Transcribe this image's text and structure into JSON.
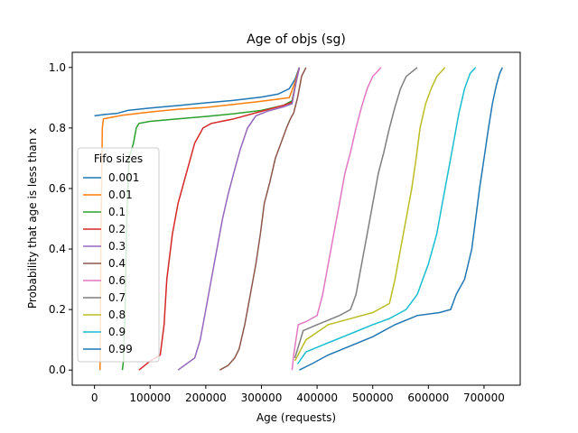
{
  "chart_data": {
    "type": "line",
    "title": "Age of objs (sg)",
    "xlabel": "Age (requests)",
    "ylabel": "Probability that age is less than x",
    "xlim": [
      -40000,
      765000
    ],
    "ylim": [
      -0.05,
      1.05
    ],
    "xticks": [
      0,
      100000,
      200000,
      300000,
      400000,
      500000,
      600000,
      700000
    ],
    "xtick_labels": [
      "0",
      "100000",
      "200000",
      "300000",
      "400000",
      "500000",
      "600000",
      "700000"
    ],
    "yticks": [
      0.0,
      0.2,
      0.4,
      0.6,
      0.8,
      1.0
    ],
    "ytick_labels": [
      "0.0",
      "0.2",
      "0.4",
      "0.6",
      "0.8",
      "1.0"
    ],
    "grid": false,
    "legend": {
      "title": "Fifo sizes",
      "placement": "lower-left"
    },
    "series": [
      {
        "name": "0.001",
        "color": "#1f77b4",
        "points": [
          [
            0,
            0.84
          ],
          [
            20000,
            0.845
          ],
          [
            40000,
            0.848
          ],
          [
            60000,
            0.858
          ],
          [
            100000,
            0.866
          ],
          [
            150000,
            0.874
          ],
          [
            200000,
            0.883
          ],
          [
            250000,
            0.891
          ],
          [
            300000,
            0.902
          ],
          [
            330000,
            0.912
          ],
          [
            350000,
            0.93
          ],
          [
            360000,
            0.96
          ],
          [
            368000,
            1.0
          ]
        ]
      },
      {
        "name": "0.01",
        "color": "#ff7f0e",
        "points": [
          [
            10000,
            0.0
          ],
          [
            12000,
            0.5
          ],
          [
            14000,
            0.8
          ],
          [
            16000,
            0.83
          ],
          [
            30000,
            0.835
          ],
          [
            50000,
            0.842
          ],
          [
            100000,
            0.853
          ],
          [
            150000,
            0.862
          ],
          [
            200000,
            0.868
          ],
          [
            250000,
            0.878
          ],
          [
            300000,
            0.888
          ],
          [
            350000,
            0.9
          ],
          [
            360000,
            0.95
          ],
          [
            368000,
            1.0
          ]
        ]
      },
      {
        "name": "0.1",
        "color": "#2ca02c",
        "points": [
          [
            50000,
            0.0
          ],
          [
            52000,
            0.03
          ],
          [
            55000,
            0.2
          ],
          [
            58000,
            0.5
          ],
          [
            62000,
            0.7
          ],
          [
            70000,
            0.75
          ],
          [
            75000,
            0.8
          ],
          [
            80000,
            0.815
          ],
          [
            100000,
            0.822
          ],
          [
            150000,
            0.83
          ],
          [
            200000,
            0.838
          ],
          [
            250000,
            0.847
          ],
          [
            300000,
            0.858
          ],
          [
            340000,
            0.875
          ],
          [
            355000,
            0.89
          ],
          [
            362000,
            0.95
          ],
          [
            368000,
            1.0
          ]
        ]
      },
      {
        "name": "0.2",
        "color": "#d62728",
        "points": [
          [
            80000,
            0.0
          ],
          [
            100000,
            0.03
          ],
          [
            118000,
            0.05
          ],
          [
            125000,
            0.15
          ],
          [
            130000,
            0.3
          ],
          [
            140000,
            0.45
          ],
          [
            150000,
            0.55
          ],
          [
            165000,
            0.65
          ],
          [
            180000,
            0.75
          ],
          [
            195000,
            0.8
          ],
          [
            210000,
            0.815
          ],
          [
            250000,
            0.83
          ],
          [
            300000,
            0.855
          ],
          [
            340000,
            0.875
          ],
          [
            355000,
            0.885
          ],
          [
            362000,
            0.95
          ],
          [
            368000,
            1.0
          ]
        ]
      },
      {
        "name": "0.3",
        "color": "#9467bd",
        "points": [
          [
            150000,
            0.0
          ],
          [
            165000,
            0.02
          ],
          [
            180000,
            0.04
          ],
          [
            190000,
            0.1
          ],
          [
            200000,
            0.2
          ],
          [
            210000,
            0.3
          ],
          [
            220000,
            0.4
          ],
          [
            230000,
            0.5
          ],
          [
            240000,
            0.58
          ],
          [
            250000,
            0.65
          ],
          [
            262000,
            0.73
          ],
          [
            275000,
            0.8
          ],
          [
            290000,
            0.84
          ],
          [
            310000,
            0.855
          ],
          [
            340000,
            0.87
          ],
          [
            355000,
            0.88
          ],
          [
            362000,
            0.95
          ],
          [
            368000,
            1.0
          ]
        ]
      },
      {
        "name": "0.4",
        "color": "#8c564b",
        "points": [
          [
            225000,
            0.0
          ],
          [
            240000,
            0.015
          ],
          [
            252000,
            0.04
          ],
          [
            260000,
            0.07
          ],
          [
            270000,
            0.15
          ],
          [
            280000,
            0.25
          ],
          [
            290000,
            0.35
          ],
          [
            298000,
            0.45
          ],
          [
            305000,
            0.55
          ],
          [
            315000,
            0.62
          ],
          [
            325000,
            0.7
          ],
          [
            335000,
            0.75
          ],
          [
            345000,
            0.8
          ],
          [
            352000,
            0.83
          ],
          [
            358000,
            0.85
          ],
          [
            365000,
            0.9
          ],
          [
            372000,
            0.97
          ],
          [
            380000,
            1.0
          ]
        ]
      },
      {
        "name": "0.6",
        "color": "#e377c2",
        "points": [
          [
            355000,
            0.0
          ],
          [
            358000,
            0.05
          ],
          [
            362000,
            0.1
          ],
          [
            366000,
            0.15
          ],
          [
            380000,
            0.16
          ],
          [
            400000,
            0.18
          ],
          [
            410000,
            0.25
          ],
          [
            420000,
            0.35
          ],
          [
            430000,
            0.45
          ],
          [
            440000,
            0.55
          ],
          [
            450000,
            0.65
          ],
          [
            460000,
            0.72
          ],
          [
            470000,
            0.8
          ],
          [
            480000,
            0.87
          ],
          [
            490000,
            0.93
          ],
          [
            500000,
            0.97
          ],
          [
            515000,
            1.0
          ]
        ]
      },
      {
        "name": "0.7",
        "color": "#7f7f7f",
        "points": [
          [
            360000,
            0.04
          ],
          [
            375000,
            0.13
          ],
          [
            400000,
            0.15
          ],
          [
            420000,
            0.165
          ],
          [
            440000,
            0.18
          ],
          [
            460000,
            0.2
          ],
          [
            470000,
            0.25
          ],
          [
            480000,
            0.35
          ],
          [
            490000,
            0.45
          ],
          [
            500000,
            0.55
          ],
          [
            510000,
            0.65
          ],
          [
            520000,
            0.72
          ],
          [
            530000,
            0.8
          ],
          [
            540000,
            0.87
          ],
          [
            550000,
            0.93
          ],
          [
            560000,
            0.97
          ],
          [
            580000,
            1.0
          ]
        ]
      },
      {
        "name": "0.8",
        "color": "#bcbd22",
        "points": [
          [
            360000,
            0.03
          ],
          [
            380000,
            0.1
          ],
          [
            420000,
            0.15
          ],
          [
            460000,
            0.17
          ],
          [
            500000,
            0.19
          ],
          [
            530000,
            0.22
          ],
          [
            540000,
            0.3
          ],
          [
            550000,
            0.4
          ],
          [
            560000,
            0.5
          ],
          [
            570000,
            0.6
          ],
          [
            578000,
            0.7
          ],
          [
            585000,
            0.8
          ],
          [
            595000,
            0.88
          ],
          [
            605000,
            0.93
          ],
          [
            615000,
            0.97
          ],
          [
            630000,
            1.0
          ]
        ]
      },
      {
        "name": "0.9",
        "color": "#17becf",
        "points": [
          [
            365000,
            0.02
          ],
          [
            380000,
            0.06
          ],
          [
            420000,
            0.09
          ],
          [
            460000,
            0.12
          ],
          [
            500000,
            0.15
          ],
          [
            530000,
            0.17
          ],
          [
            560000,
            0.2
          ],
          [
            580000,
            0.25
          ],
          [
            600000,
            0.35
          ],
          [
            615000,
            0.45
          ],
          [
            625000,
            0.55
          ],
          [
            635000,
            0.65
          ],
          [
            645000,
            0.75
          ],
          [
            655000,
            0.85
          ],
          [
            665000,
            0.93
          ],
          [
            675000,
            0.98
          ],
          [
            685000,
            1.0
          ]
        ]
      },
      {
        "name": "0.99",
        "color": "#1f77b4",
        "points": [
          [
            368000,
            0.0
          ],
          [
            390000,
            0.02
          ],
          [
            420000,
            0.05
          ],
          [
            460000,
            0.08
          ],
          [
            500000,
            0.11
          ],
          [
            540000,
            0.15
          ],
          [
            580000,
            0.18
          ],
          [
            620000,
            0.19
          ],
          [
            640000,
            0.2
          ],
          [
            650000,
            0.25
          ],
          [
            665000,
            0.3
          ],
          [
            678000,
            0.4
          ],
          [
            685000,
            0.5
          ],
          [
            692000,
            0.6
          ],
          [
            700000,
            0.7
          ],
          [
            708000,
            0.8
          ],
          [
            715000,
            0.88
          ],
          [
            722000,
            0.94
          ],
          [
            728000,
            0.98
          ],
          [
            733000,
            1.0
          ]
        ]
      }
    ]
  }
}
